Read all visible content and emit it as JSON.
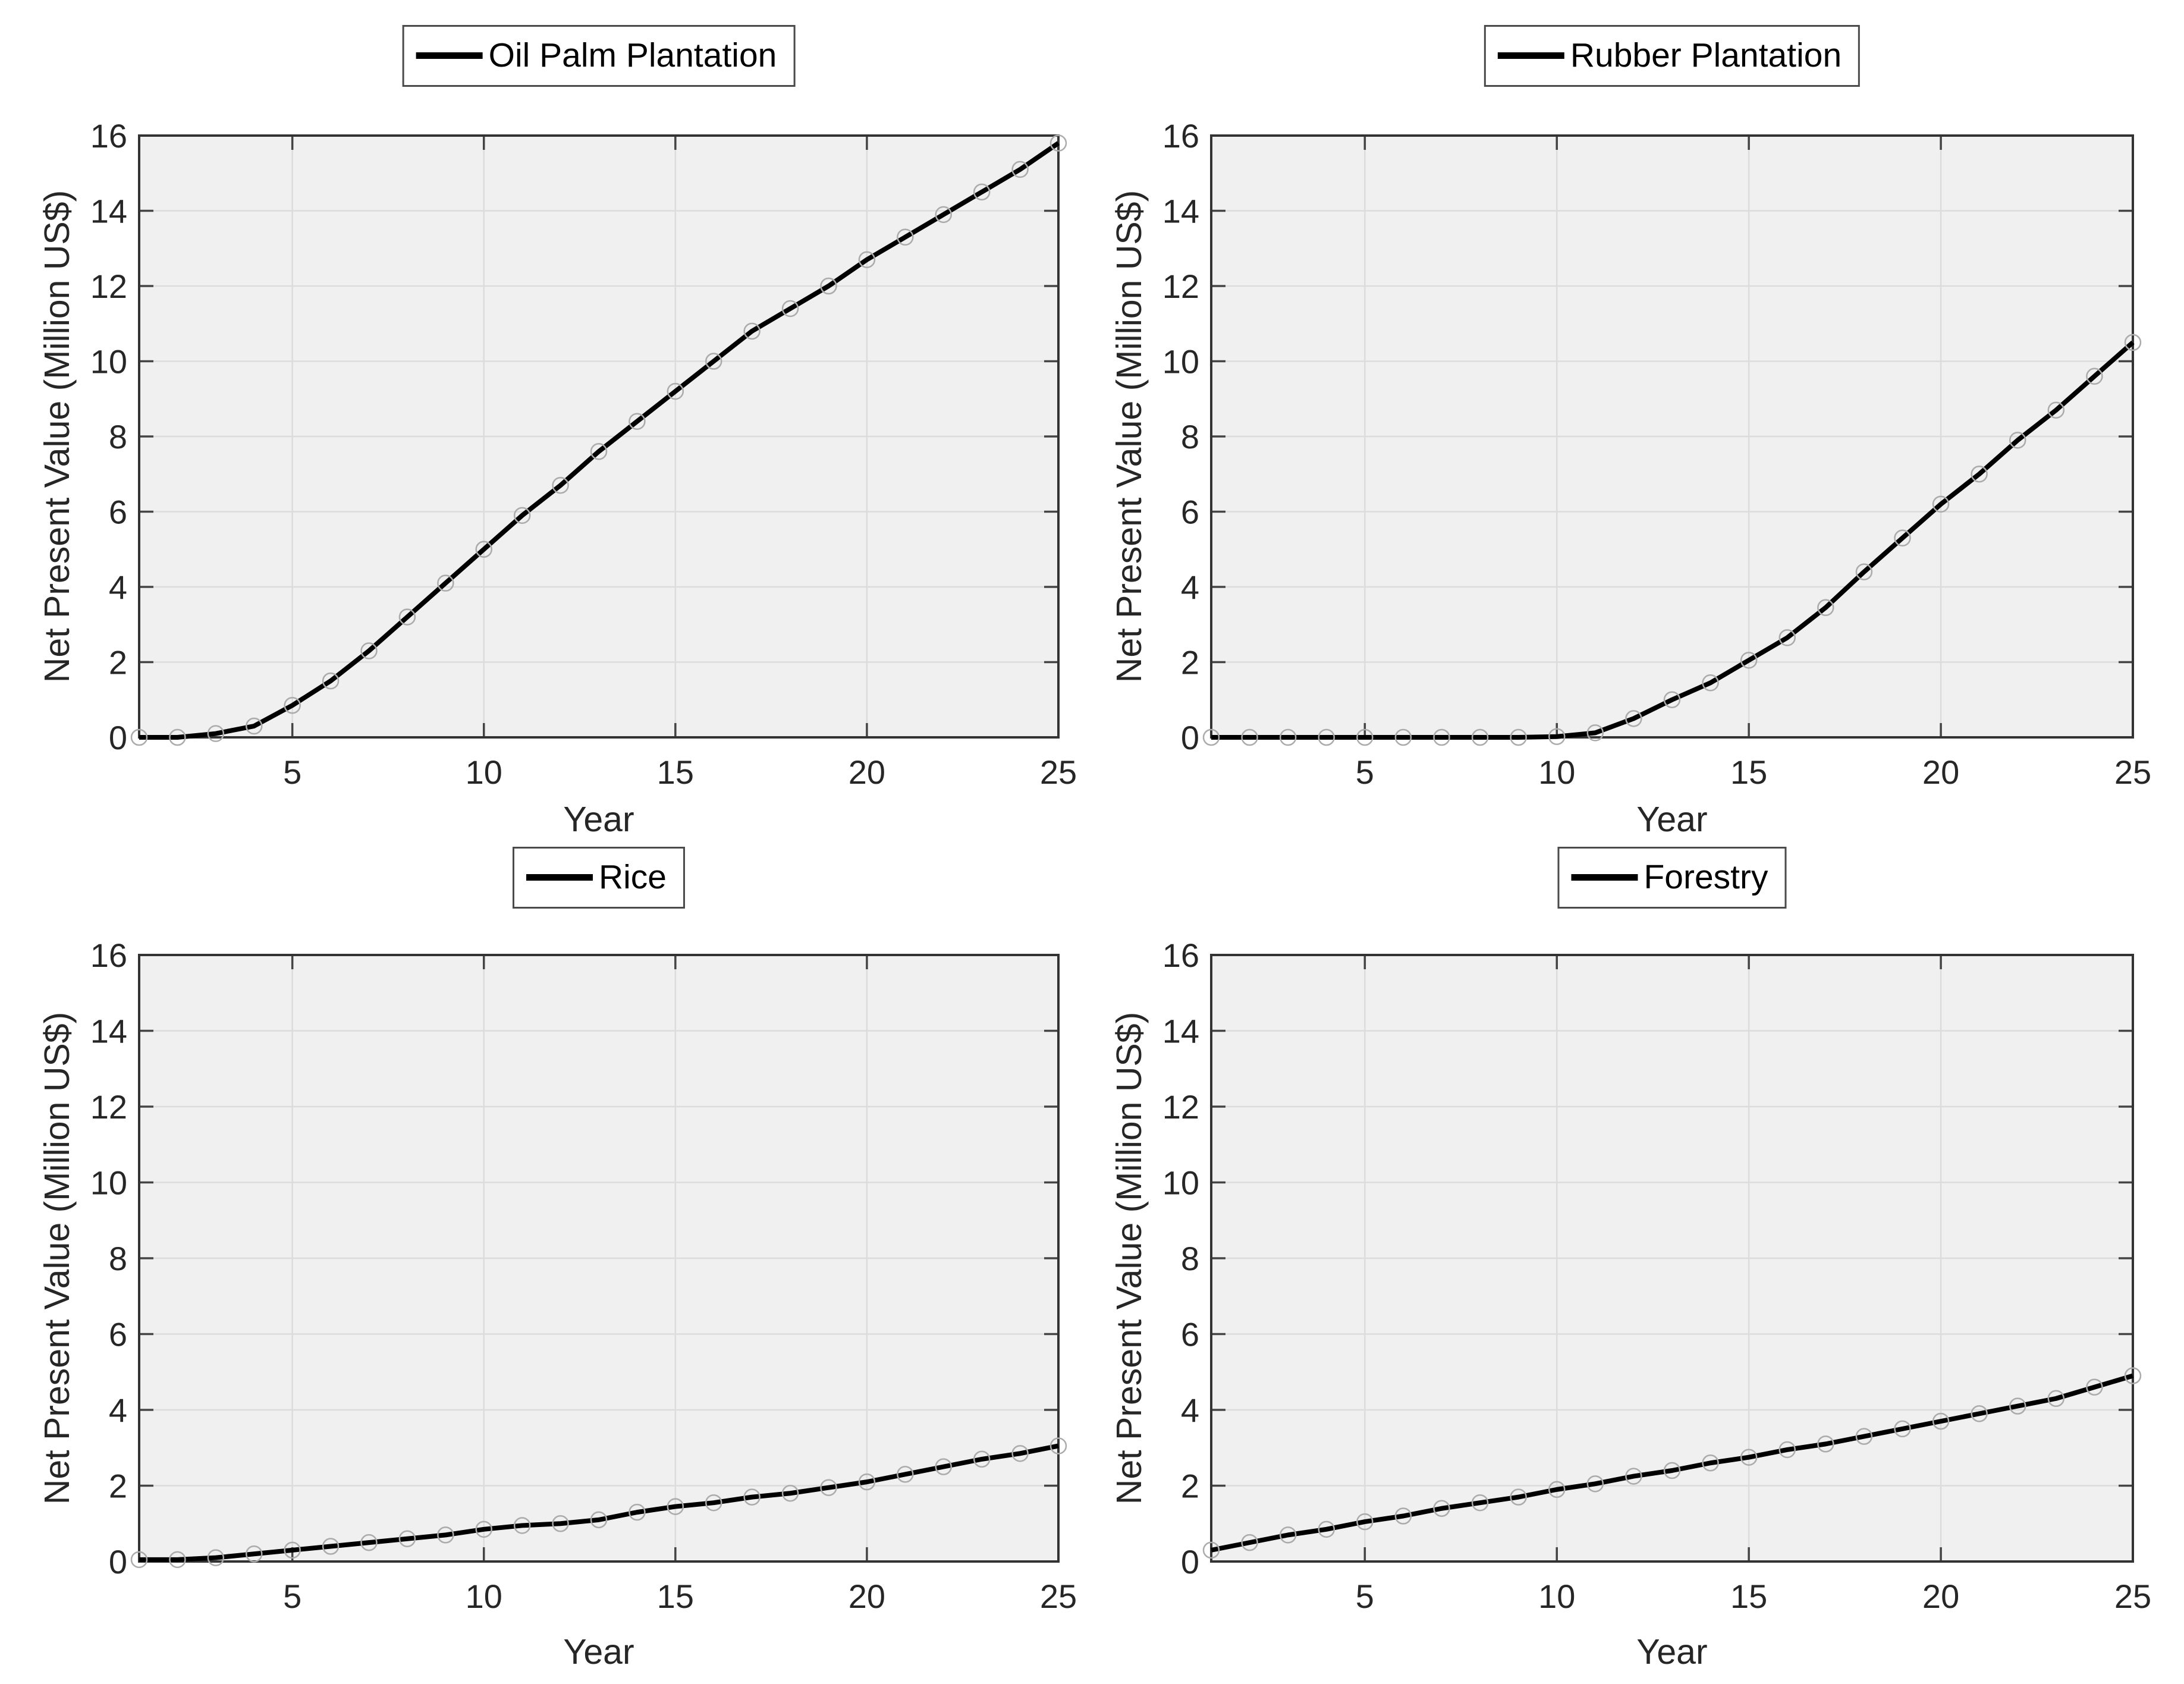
{
  "page": {
    "background": "#ffffff"
  },
  "style": {
    "plot_bg": "#f0f0f0",
    "grid_color": "#dcdcdc",
    "axis_color": "#333333",
    "tick_color": "#444444",
    "tick_label_color": "#262626",
    "line_color": "#000000",
    "marker_edge_color": "#ababab"
  },
  "chart_data": [
    {
      "type": "line",
      "legend": "Oil Palm Plantation",
      "xlabel": "Year",
      "ylabel": "Net Present Value (Million US$)",
      "x": [
        1,
        2,
        3,
        4,
        5,
        6,
        7,
        8,
        9,
        10,
        11,
        12,
        13,
        14,
        15,
        16,
        17,
        18,
        19,
        20,
        21,
        22,
        23,
        24,
        25
      ],
      "values": [
        0.0,
        0.0,
        0.1,
        0.3,
        0.85,
        1.5,
        2.3,
        3.2,
        4.1,
        5.0,
        5.9,
        6.7,
        7.6,
        8.4,
        9.2,
        10.0,
        10.8,
        11.4,
        12.0,
        12.7,
        13.3,
        13.9,
        14.5,
        15.1,
        15.8
      ],
      "xlim": [
        1,
        25
      ],
      "ylim": [
        0,
        16
      ],
      "xticks": [
        5,
        10,
        15,
        20,
        25
      ],
      "yticks": [
        0,
        2,
        4,
        6,
        8,
        10,
        12,
        14,
        16
      ],
      "grid": true,
      "legend_position": "top-center",
      "marker": "circle"
    },
    {
      "type": "line",
      "legend": "Rubber Plantation",
      "xlabel": "Year",
      "ylabel": "Net Present Value (Million US$)",
      "x": [
        1,
        2,
        3,
        4,
        5,
        6,
        7,
        8,
        9,
        10,
        11,
        12,
        13,
        14,
        15,
        16,
        17,
        18,
        19,
        20,
        21,
        22,
        23,
        24,
        25
      ],
      "values": [
        0.0,
        0.0,
        0.0,
        0.0,
        0.0,
        0.0,
        0.0,
        0.0,
        0.0,
        0.02,
        0.12,
        0.5,
        1.0,
        1.45,
        2.05,
        2.65,
        3.45,
        4.4,
        5.3,
        6.2,
        7.0,
        7.9,
        8.7,
        9.6,
        10.5
      ],
      "xlim": [
        1,
        25
      ],
      "ylim": [
        0,
        16
      ],
      "xticks": [
        5,
        10,
        15,
        20,
        25
      ],
      "yticks": [
        0,
        2,
        4,
        6,
        8,
        10,
        12,
        14,
        16
      ],
      "grid": true,
      "legend_position": "top-center",
      "marker": "circle"
    },
    {
      "type": "line",
      "legend": "Rice",
      "xlabel": "Year",
      "ylabel": "Net Present Value (Million US$)",
      "x": [
        1,
        2,
        3,
        4,
        5,
        6,
        7,
        8,
        9,
        10,
        11,
        12,
        13,
        14,
        15,
        16,
        17,
        18,
        19,
        20,
        21,
        22,
        23,
        24,
        25
      ],
      "values": [
        0.05,
        0.05,
        0.1,
        0.2,
        0.3,
        0.4,
        0.5,
        0.6,
        0.7,
        0.85,
        0.95,
        1.0,
        1.1,
        1.3,
        1.45,
        1.55,
        1.7,
        1.8,
        1.95,
        2.1,
        2.3,
        2.5,
        2.7,
        2.85,
        3.05
      ],
      "xlim": [
        1,
        25
      ],
      "ylim": [
        0,
        16
      ],
      "xticks": [
        5,
        10,
        15,
        20,
        25
      ],
      "yticks": [
        0,
        2,
        4,
        6,
        8,
        10,
        12,
        14,
        16
      ],
      "grid": true,
      "legend_position": "top-center",
      "marker": "circle"
    },
    {
      "type": "line",
      "legend": "Forestry",
      "xlabel": "Year",
      "ylabel": "Net Present Value (Million US$)",
      "x": [
        1,
        2,
        3,
        4,
        5,
        6,
        7,
        8,
        9,
        10,
        11,
        12,
        13,
        14,
        15,
        16,
        17,
        18,
        19,
        20,
        21,
        22,
        23,
        24,
        25
      ],
      "values": [
        0.3,
        0.5,
        0.7,
        0.85,
        1.05,
        1.2,
        1.4,
        1.55,
        1.7,
        1.9,
        2.05,
        2.25,
        2.4,
        2.6,
        2.75,
        2.95,
        3.1,
        3.3,
        3.5,
        3.7,
        3.9,
        4.1,
        4.3,
        4.6,
        4.9
      ],
      "xlim": [
        1,
        25
      ],
      "ylim": [
        0,
        16
      ],
      "xticks": [
        5,
        10,
        15,
        20,
        25
      ],
      "yticks": [
        0,
        2,
        4,
        6,
        8,
        10,
        12,
        14,
        16
      ],
      "grid": true,
      "legend_position": "top-center",
      "marker": "circle"
    }
  ]
}
